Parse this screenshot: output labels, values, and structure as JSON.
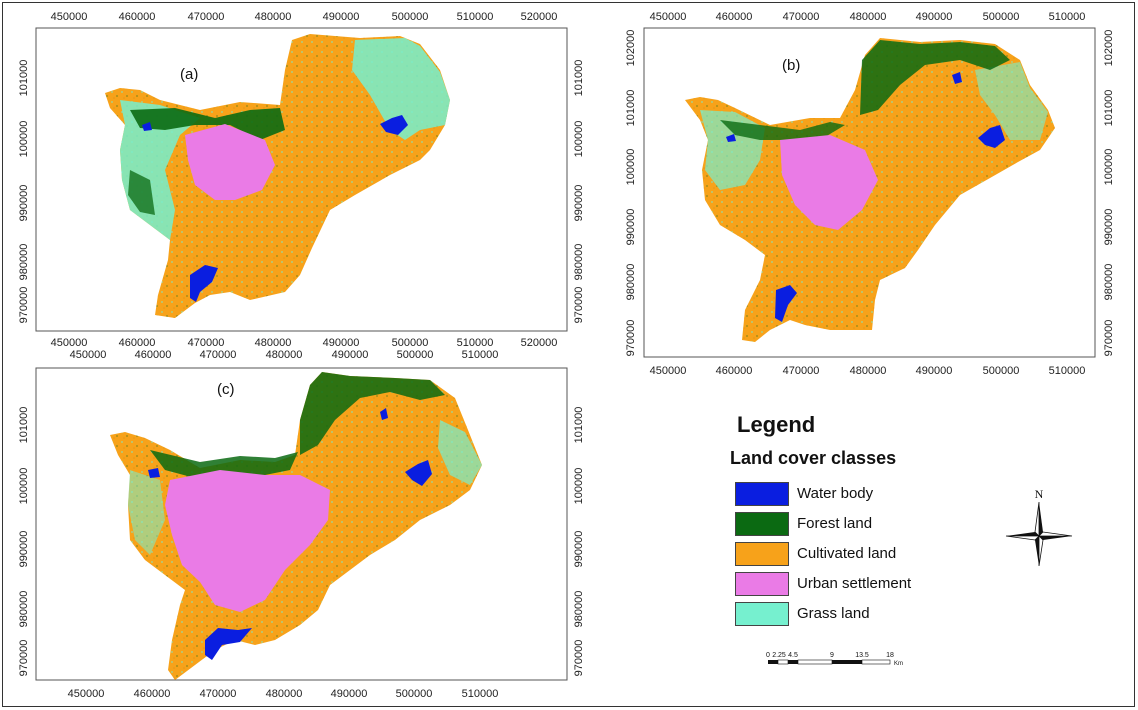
{
  "panels": [
    {
      "label": "(a)",
      "x_ticks_top": [
        "450000",
        "460000",
        "470000",
        "480000",
        "490000",
        "500000",
        "510000",
        "520000"
      ],
      "x_ticks_bottom": [
        "450000",
        "460000",
        "470000",
        "480000",
        "490000",
        "500000",
        "510000",
        "520000"
      ],
      "y_ticks": [
        "101000",
        "100000",
        "990000",
        "980000",
        "970000"
      ]
    },
    {
      "label": "(b)",
      "x_ticks_top": [
        "450000",
        "460000",
        "470000",
        "480000",
        "490000",
        "500000",
        "510000"
      ],
      "x_ticks_bottom": [
        "450000",
        "460000",
        "470000",
        "480000",
        "490000",
        "500000",
        "510000"
      ],
      "y_ticks": [
        "102000",
        "101000",
        "100000",
        "990000",
        "980000",
        "970000"
      ]
    },
    {
      "label": "(c)",
      "x_ticks_top": [
        "450000",
        "460000",
        "470000",
        "480000",
        "490000",
        "500000",
        "510000"
      ],
      "x_ticks_bottom": [
        "450000",
        "460000",
        "470000",
        "480000",
        "490000",
        "500000",
        "510000"
      ],
      "y_ticks": [
        "101000",
        "100000",
        "990000",
        "980000",
        "970000"
      ]
    }
  ],
  "legend": {
    "title": "Legend",
    "subtitle": "Land cover classes",
    "items": [
      {
        "label": "Water body",
        "color": "#0a1ee0"
      },
      {
        "label": "Forest land",
        "color": "#0b6a12"
      },
      {
        "label": "Cultivated land",
        "color": "#f7a21a"
      },
      {
        "label": "Urban settlement",
        "color": "#ea7be6"
      },
      {
        "label": "Grass land",
        "color": "#76f0cf"
      }
    ]
  },
  "north_arrow": {
    "label": "N"
  },
  "scale_bar": {
    "ticks": [
      "0",
      "2.25",
      "4.5",
      "9",
      "13.5",
      "18"
    ],
    "unit": "Km"
  }
}
